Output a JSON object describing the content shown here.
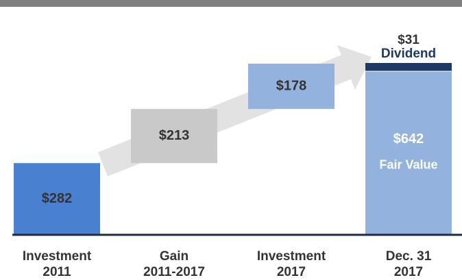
{
  "chart_data": {
    "type": "waterfall",
    "categories": [
      [
        "Investment",
        "2011"
      ],
      [
        "Gain",
        "2011-2017"
      ],
      [
        "Investment",
        "2017"
      ],
      [
        "Dec. 31",
        "2017"
      ]
    ],
    "values": [
      282,
      213,
      178,
      642
    ],
    "value_labels": [
      "$282",
      "$213",
      "$178",
      "$642"
    ],
    "colors": [
      "#4a80d0",
      "#c9c9c9",
      "#93b3de",
      "#93b3de"
    ],
    "total_label": "Fair Value",
    "dividend": {
      "value": 31,
      "value_label": "$31",
      "label": "Dividend",
      "color": "#1f3864"
    }
  }
}
